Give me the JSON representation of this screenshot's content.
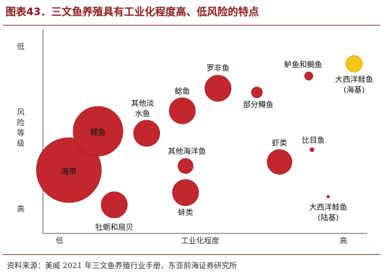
{
  "figure_title": "图表43．三文鱼养殖具有工业化程度高、低风险的特点",
  "source": "资料来源：美威 2021 年三文鱼养殖行业手册，东亚前海证券研究所",
  "colors": {
    "bubble": "#c1272d",
    "highlight": "#f5c518",
    "title": "#8b1a1a",
    "axis": "#555555"
  },
  "chart_data": {
    "type": "bubble",
    "xlabel": "工业化程度",
    "ylabel": "风险等级",
    "x_ticks": [
      "低",
      "高"
    ],
    "y_ticks": [
      "低",
      "高"
    ],
    "xlim": [
      0,
      100
    ],
    "ylim": [
      0,
      100
    ],
    "points": [
      {
        "label": "海带",
        "x": 8,
        "y": 31,
        "size": 47
      },
      {
        "label": "鲤鱼",
        "x": 17,
        "y": 50,
        "size": 36
      },
      {
        "label": "牡蛎和扇贝",
        "x": 22,
        "y": 14,
        "size": 19
      },
      {
        "label": "其他淡水鱼",
        "x": 32,
        "y": 49,
        "size": 19
      },
      {
        "label": "鲶鱼",
        "x": 43,
        "y": 60,
        "size": 19
      },
      {
        "label": "其他海洋鱼",
        "x": 44,
        "y": 33,
        "size": 11
      },
      {
        "label": "蚌类",
        "x": 44,
        "y": 20,
        "size": 19
      },
      {
        "label": "罗非鱼",
        "x": 54,
        "y": 71,
        "size": 19
      },
      {
        "label": "部分鳟鱼",
        "x": 66,
        "y": 69,
        "size": 8
      },
      {
        "label": "虾类",
        "x": 73,
        "y": 35,
        "size": 18
      },
      {
        "label": "鲈鱼和鲷鱼",
        "x": 82,
        "y": 77,
        "size": 6
      },
      {
        "label": "比目鱼",
        "x": 83,
        "y": 41,
        "size": 3
      },
      {
        "label": "大西洋鲑鱼(海基)",
        "x": 96,
        "y": 83,
        "size": 12,
        "highlight": true
      },
      {
        "label": "大西洋鲑鱼(陆基)",
        "x": 88,
        "y": 18,
        "size": 2
      }
    ]
  }
}
